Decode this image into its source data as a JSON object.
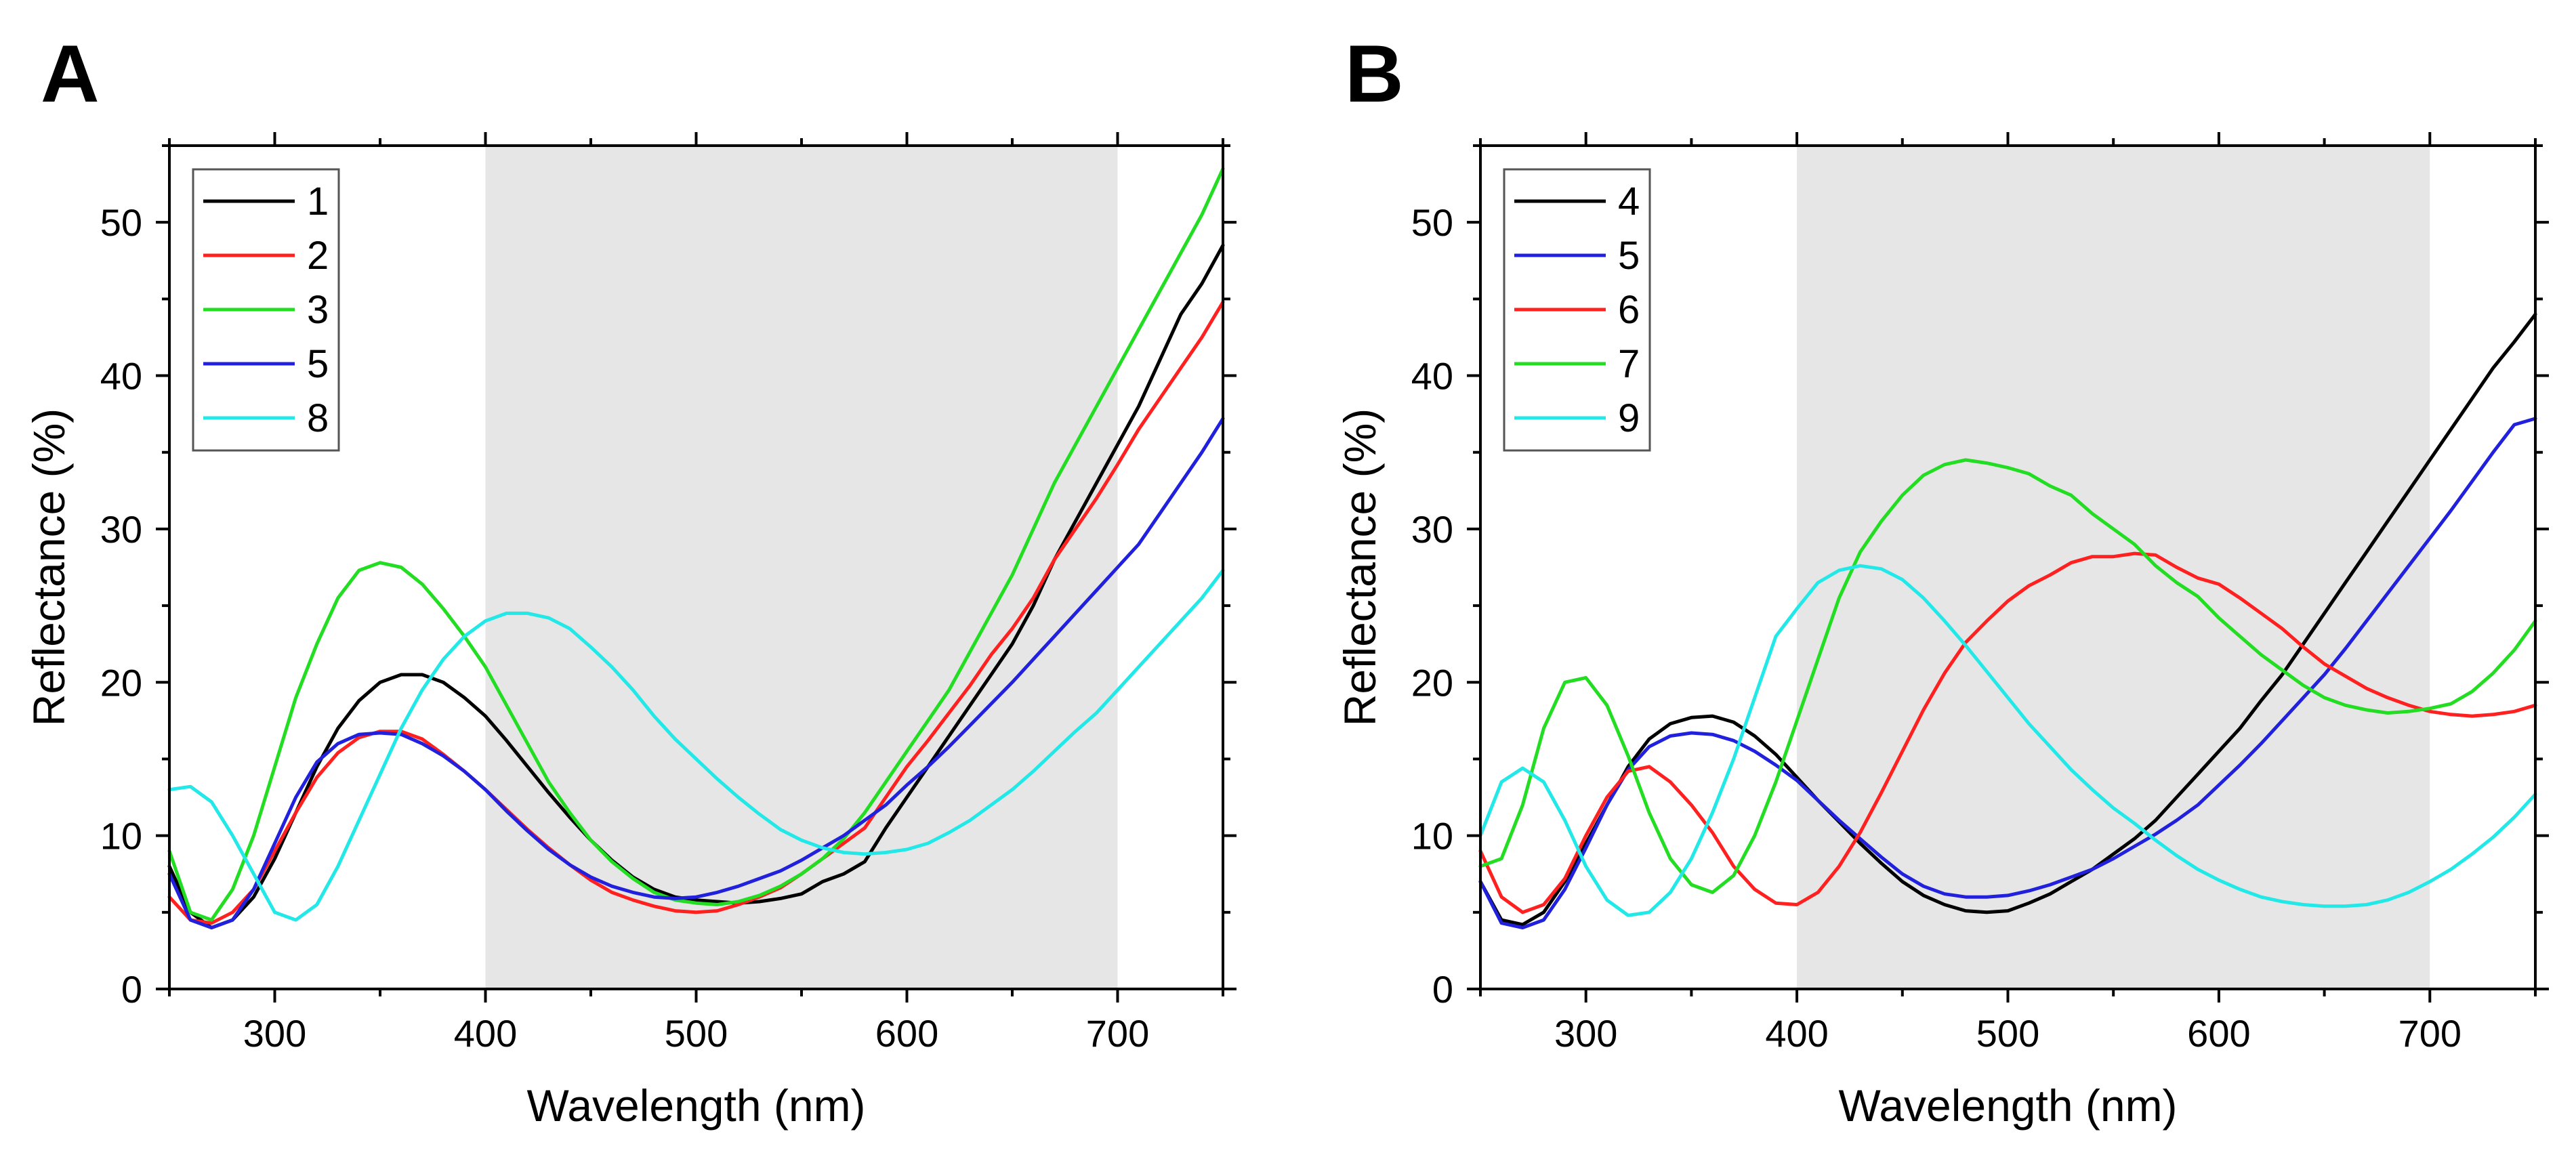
{
  "chart_data": [
    {
      "type": "line",
      "panel": "A",
      "xlabel": "Wavelength (nm)",
      "ylabel": "Reflectance (%)",
      "xlim": [
        250,
        750
      ],
      "ylim": [
        0,
        55
      ],
      "xticks": [
        300,
        400,
        500,
        600,
        700
      ],
      "yticks": [
        0,
        10,
        20,
        30,
        40,
        50
      ],
      "shaded_region": [
        400,
        700
      ],
      "legend_position": "top-left",
      "series": [
        {
          "name": "1",
          "color": "#000000",
          "x": [
            250,
            260,
            270,
            280,
            290,
            300,
            310,
            320,
            330,
            340,
            350,
            360,
            370,
            380,
            390,
            400,
            410,
            420,
            430,
            440,
            450,
            460,
            470,
            480,
            490,
            500,
            510,
            520,
            530,
            540,
            550,
            560,
            570,
            580,
            590,
            600,
            610,
            620,
            630,
            640,
            650,
            660,
            670,
            680,
            690,
            700,
            710,
            720,
            730,
            740,
            750
          ],
          "y": [
            8,
            5,
            4,
            4.5,
            6,
            8.5,
            11.5,
            14.5,
            17,
            18.8,
            20,
            20.5,
            20.5,
            20,
            19,
            17.8,
            16.2,
            14.5,
            12.8,
            11.2,
            9.7,
            8.4,
            7.3,
            6.5,
            6,
            5.8,
            5.7,
            5.6,
            5.7,
            5.9,
            6.2,
            7,
            7.5,
            8.3,
            10.5,
            12.5,
            14.5,
            16.5,
            18.5,
            20.5,
            22.5,
            25,
            28,
            30.5,
            33,
            35.5,
            38,
            41,
            44,
            46,
            48.5
          ]
        },
        {
          "name": "2",
          "color": "#ff2020",
          "x": [
            250,
            260,
            270,
            280,
            290,
            300,
            310,
            320,
            330,
            340,
            350,
            360,
            370,
            380,
            390,
            400,
            410,
            420,
            430,
            440,
            450,
            460,
            470,
            480,
            490,
            500,
            510,
            520,
            530,
            540,
            550,
            560,
            570,
            580,
            590,
            600,
            610,
            620,
            630,
            640,
            650,
            660,
            670,
            680,
            690,
            700,
            710,
            720,
            730,
            740,
            750
          ],
          "y": [
            6,
            4.5,
            4.3,
            5,
            6.5,
            9,
            11.5,
            13.8,
            15.4,
            16.4,
            16.8,
            16.8,
            16.3,
            15.3,
            14.2,
            13,
            11.7,
            10.4,
            9.2,
            8.1,
            7.1,
            6.3,
            5.8,
            5.4,
            5.1,
            5,
            5.1,
            5.5,
            6,
            6.6,
            7.5,
            8.5,
            9.5,
            10.5,
            12.5,
            14.5,
            16.2,
            18,
            19.8,
            21.8,
            23.5,
            25.5,
            28,
            30,
            32,
            34.2,
            36.5,
            38.5,
            40.5,
            42.5,
            44.8
          ]
        },
        {
          "name": "3",
          "color": "#22dd22",
          "x": [
            250,
            260,
            270,
            280,
            290,
            300,
            310,
            320,
            330,
            340,
            350,
            360,
            370,
            380,
            390,
            400,
            410,
            420,
            430,
            440,
            450,
            460,
            470,
            480,
            490,
            500,
            510,
            520,
            530,
            540,
            550,
            560,
            570,
            580,
            590,
            600,
            610,
            620,
            630,
            640,
            650,
            660,
            670,
            680,
            690,
            700,
            710,
            720,
            730,
            740,
            750
          ],
          "y": [
            9,
            5,
            4.5,
            6.5,
            10,
            14.5,
            19,
            22.5,
            25.5,
            27.3,
            27.8,
            27.5,
            26.4,
            24.8,
            23,
            21,
            18.5,
            16,
            13.5,
            11.5,
            9.7,
            8.3,
            7.2,
            6.3,
            5.8,
            5.6,
            5.5,
            5.7,
            6.1,
            6.7,
            7.5,
            8.5,
            9.8,
            11.5,
            13.5,
            15.5,
            17.5,
            19.5,
            22,
            24.5,
            27,
            30,
            33,
            35.5,
            38,
            40.5,
            43,
            45.5,
            48,
            50.5,
            53.5
          ]
        },
        {
          "name": "5",
          "color": "#2020dd",
          "x": [
            250,
            260,
            270,
            280,
            290,
            300,
            310,
            320,
            330,
            340,
            350,
            360,
            370,
            380,
            390,
            400,
            410,
            420,
            430,
            440,
            450,
            460,
            470,
            480,
            490,
            500,
            510,
            520,
            530,
            540,
            550,
            560,
            570,
            580,
            590,
            600,
            610,
            620,
            630,
            640,
            650,
            660,
            670,
            680,
            690,
            700,
            710,
            720,
            730,
            740,
            750
          ],
          "y": [
            7.5,
            4.5,
            4,
            4.5,
            6.5,
            9.5,
            12.5,
            14.8,
            16,
            16.6,
            16.7,
            16.6,
            16,
            15.2,
            14.2,
            13,
            11.6,
            10.3,
            9.1,
            8.1,
            7.3,
            6.7,
            6.3,
            6,
            5.9,
            6,
            6.3,
            6.7,
            7.2,
            7.7,
            8.4,
            9.2,
            10,
            11,
            12,
            13.3,
            14.5,
            15.8,
            17.2,
            18.6,
            20,
            21.5,
            23,
            24.5,
            26,
            27.5,
            29,
            31,
            33,
            35,
            37.2
          ]
        },
        {
          "name": "8",
          "color": "#22e8e8",
          "x": [
            250,
            260,
            270,
            280,
            290,
            300,
            310,
            320,
            330,
            340,
            350,
            360,
            370,
            380,
            390,
            400,
            410,
            420,
            430,
            440,
            450,
            460,
            470,
            480,
            490,
            500,
            510,
            520,
            530,
            540,
            550,
            560,
            570,
            580,
            590,
            600,
            610,
            620,
            630,
            640,
            650,
            660,
            670,
            680,
            690,
            700,
            710,
            720,
            730,
            740,
            750
          ],
          "y": [
            13,
            13.2,
            12.2,
            10,
            7.5,
            5,
            4.5,
            5.5,
            8,
            11,
            14,
            17,
            19.5,
            21.5,
            23,
            24,
            24.5,
            24.5,
            24.2,
            23.5,
            22.3,
            21,
            19.5,
            17.8,
            16.3,
            15,
            13.7,
            12.5,
            11.4,
            10.4,
            9.7,
            9.2,
            8.9,
            8.8,
            8.9,
            9.1,
            9.5,
            10.2,
            11,
            12,
            13,
            14.2,
            15.5,
            16.8,
            18,
            19.5,
            21,
            22.5,
            24,
            25.5,
            27.3
          ]
        }
      ]
    },
    {
      "type": "line",
      "panel": "B",
      "xlabel": "Wavelength (nm)",
      "ylabel": "Reflectance (%)",
      "xlim": [
        250,
        750
      ],
      "ylim": [
        0,
        55
      ],
      "xticks": [
        300,
        400,
        500,
        600,
        700
      ],
      "yticks": [
        0,
        10,
        20,
        30,
        40,
        50
      ],
      "shaded_region": [
        400,
        700
      ],
      "legend_position": "top-left",
      "series": [
        {
          "name": "4",
          "color": "#000000",
          "x": [
            250,
            260,
            270,
            280,
            290,
            300,
            310,
            320,
            330,
            340,
            350,
            360,
            370,
            380,
            390,
            400,
            410,
            420,
            430,
            440,
            450,
            460,
            470,
            480,
            490,
            500,
            510,
            520,
            530,
            540,
            550,
            560,
            570,
            580,
            590,
            600,
            610,
            620,
            630,
            640,
            650,
            660,
            670,
            680,
            690,
            700,
            710,
            720,
            730,
            740,
            750
          ],
          "y": [
            7,
            4.5,
            4.2,
            5,
            7,
            9.5,
            12,
            14.5,
            16.3,
            17.3,
            17.7,
            17.8,
            17.4,
            16.5,
            15.3,
            13.8,
            12.3,
            10.9,
            9.5,
            8.2,
            7,
            6.1,
            5.5,
            5.1,
            5,
            5.1,
            5.6,
            6.2,
            7,
            7.8,
            8.8,
            9.8,
            11,
            12.5,
            14,
            15.5,
            17,
            18.8,
            20.5,
            22.5,
            24.5,
            26.5,
            28.5,
            30.5,
            32.5,
            34.5,
            36.5,
            38.5,
            40.5,
            42.2,
            44
          ]
        },
        {
          "name": "5",
          "color": "#2020dd",
          "x": [
            250,
            260,
            270,
            280,
            290,
            300,
            310,
            320,
            330,
            340,
            350,
            360,
            370,
            380,
            390,
            400,
            410,
            420,
            430,
            440,
            450,
            460,
            470,
            480,
            490,
            500,
            510,
            520,
            530,
            540,
            550,
            560,
            570,
            580,
            590,
            600,
            610,
            620,
            630,
            640,
            650,
            660,
            670,
            680,
            690,
            700,
            710,
            720,
            730,
            740,
            750
          ],
          "y": [
            7,
            4.3,
            4,
            4.5,
            6.5,
            9.2,
            12,
            14.3,
            15.8,
            16.5,
            16.7,
            16.6,
            16.2,
            15.5,
            14.6,
            13.6,
            12.3,
            11,
            9.8,
            8.6,
            7.5,
            6.7,
            6.2,
            6,
            6,
            6.1,
            6.4,
            6.8,
            7.3,
            7.8,
            8.5,
            9.3,
            10.1,
            11,
            12,
            13.3,
            14.6,
            16,
            17.5,
            19,
            20.5,
            22.2,
            24,
            25.8,
            27.6,
            29.4,
            31.2,
            33.1,
            35,
            36.8,
            37.2
          ]
        },
        {
          "name": "6",
          "color": "#ff2020",
          "x": [
            250,
            260,
            270,
            280,
            290,
            300,
            310,
            320,
            330,
            340,
            350,
            360,
            370,
            380,
            390,
            400,
            410,
            420,
            430,
            440,
            450,
            460,
            470,
            480,
            490,
            500,
            510,
            520,
            530,
            540,
            550,
            560,
            570,
            580,
            590,
            600,
            610,
            620,
            630,
            640,
            650,
            660,
            670,
            680,
            690,
            700,
            710,
            720,
            730,
            740,
            750
          ],
          "y": [
            9,
            6,
            5,
            5.5,
            7.2,
            10,
            12.5,
            14.2,
            14.5,
            13.5,
            12,
            10.2,
            8,
            6.5,
            5.6,
            5.5,
            6.3,
            8,
            10.2,
            12.8,
            15.5,
            18.2,
            20.6,
            22.6,
            24,
            25.3,
            26.3,
            27,
            27.8,
            28.2,
            28.2,
            28.4,
            28.3,
            27.5,
            26.8,
            26.4,
            25.5,
            24.5,
            23.5,
            22.3,
            21.2,
            20.4,
            19.6,
            19,
            18.5,
            18.1,
            17.9,
            17.8,
            17.9,
            18.1,
            18.5
          ]
        },
        {
          "name": "7",
          "color": "#22dd22",
          "x": [
            250,
            260,
            270,
            280,
            290,
            300,
            310,
            320,
            330,
            340,
            350,
            360,
            370,
            380,
            390,
            400,
            410,
            420,
            430,
            440,
            450,
            460,
            470,
            480,
            490,
            500,
            510,
            520,
            530,
            540,
            550,
            560,
            570,
            580,
            590,
            600,
            610,
            620,
            630,
            640,
            650,
            660,
            670,
            680,
            690,
            700,
            710,
            720,
            730,
            740,
            750
          ],
          "y": [
            8,
            8.5,
            12,
            17,
            20,
            20.3,
            18.5,
            15.2,
            11.5,
            8.5,
            6.8,
            6.3,
            7.4,
            10,
            13.5,
            17.5,
            21.5,
            25.5,
            28.5,
            30.5,
            32.2,
            33.5,
            34.2,
            34.5,
            34.3,
            34,
            33.6,
            32.8,
            32.2,
            31,
            30,
            29,
            27.6,
            26.5,
            25.6,
            24.2,
            23,
            21.8,
            20.8,
            19.8,
            19,
            18.5,
            18.2,
            18,
            18.1,
            18.3,
            18.6,
            19.4,
            20.6,
            22.1,
            24
          ]
        },
        {
          "name": "9",
          "color": "#22e8e8",
          "x": [
            250,
            260,
            270,
            280,
            290,
            300,
            310,
            320,
            330,
            340,
            350,
            360,
            370,
            380,
            390,
            400,
            410,
            420,
            430,
            440,
            450,
            460,
            470,
            480,
            490,
            500,
            510,
            520,
            530,
            540,
            550,
            560,
            570,
            580,
            590,
            600,
            610,
            620,
            630,
            640,
            650,
            660,
            670,
            680,
            690,
            700,
            710,
            720,
            730,
            740,
            750
          ],
          "y": [
            10,
            13.5,
            14.4,
            13.5,
            11,
            8,
            5.8,
            4.8,
            5,
            6.3,
            8.5,
            11.5,
            15,
            19,
            23,
            24.8,
            26.5,
            27.3,
            27.6,
            27.4,
            26.7,
            25.5,
            24,
            22.4,
            20.7,
            19,
            17.3,
            15.8,
            14.3,
            13,
            11.8,
            10.8,
            9.7,
            8.7,
            7.8,
            7.1,
            6.5,
            6,
            5.7,
            5.5,
            5.4,
            5.4,
            5.5,
            5.8,
            6.3,
            7,
            7.8,
            8.8,
            9.9,
            11.2,
            12.7
          ]
        }
      ]
    }
  ]
}
